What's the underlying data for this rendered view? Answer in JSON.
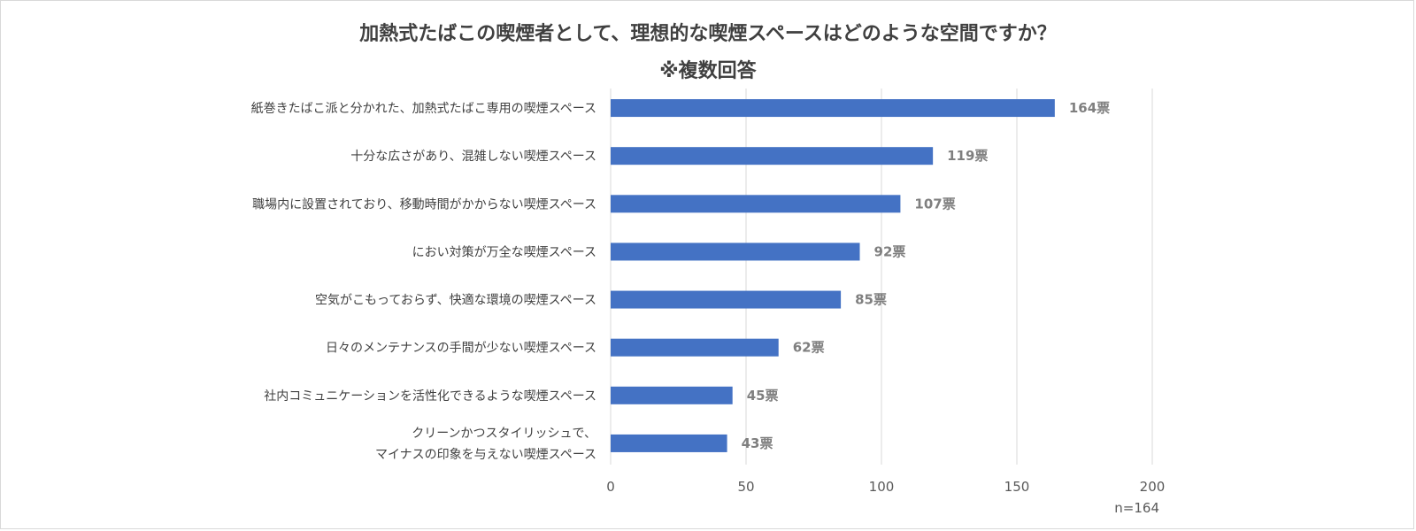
{
  "chart_data": {
    "type": "bar",
    "orientation": "horizontal",
    "title": [
      "加熱式たばこの喫煙者として、理想的な喫煙スペースはどのような空間ですか？",
      "※複数回答"
    ],
    "categories": [
      [
        "紙巻きたばこ派と分かれた、加熱式たばこ専用の喫煙スペース"
      ],
      [
        "十分な広さがあり、混雑しない喫煙スペース"
      ],
      [
        "職場内に設置されており、移動時間がかからない喫煙スペース"
      ],
      [
        "におい対策が万全な喫煙スペース"
      ],
      [
        "空気がこもっておらず、快適な環境の喫煙スペース"
      ],
      [
        "日々のメンテナンスの手間が少ない喫煙スペース"
      ],
      [
        "社内コミュニケーションを活性化できるような喫煙スペース"
      ],
      [
        "クリーンかつスタイリッシュで、",
        "マイナスの印象を与えない喫煙スペース"
      ]
    ],
    "values": [
      164,
      119,
      107,
      92,
      85,
      62,
      45,
      43
    ],
    "data_labels": [
      "164票",
      "119票",
      "107票",
      "92票",
      "85票",
      "62票",
      "45票",
      "43票"
    ],
    "xlim": [
      0,
      200
    ],
    "x_ticks": [
      0,
      50,
      100,
      150,
      200
    ],
    "grid": true,
    "note": "n=164",
    "bar_color": "#4472c4",
    "grid_color": "#d9d9d9"
  }
}
